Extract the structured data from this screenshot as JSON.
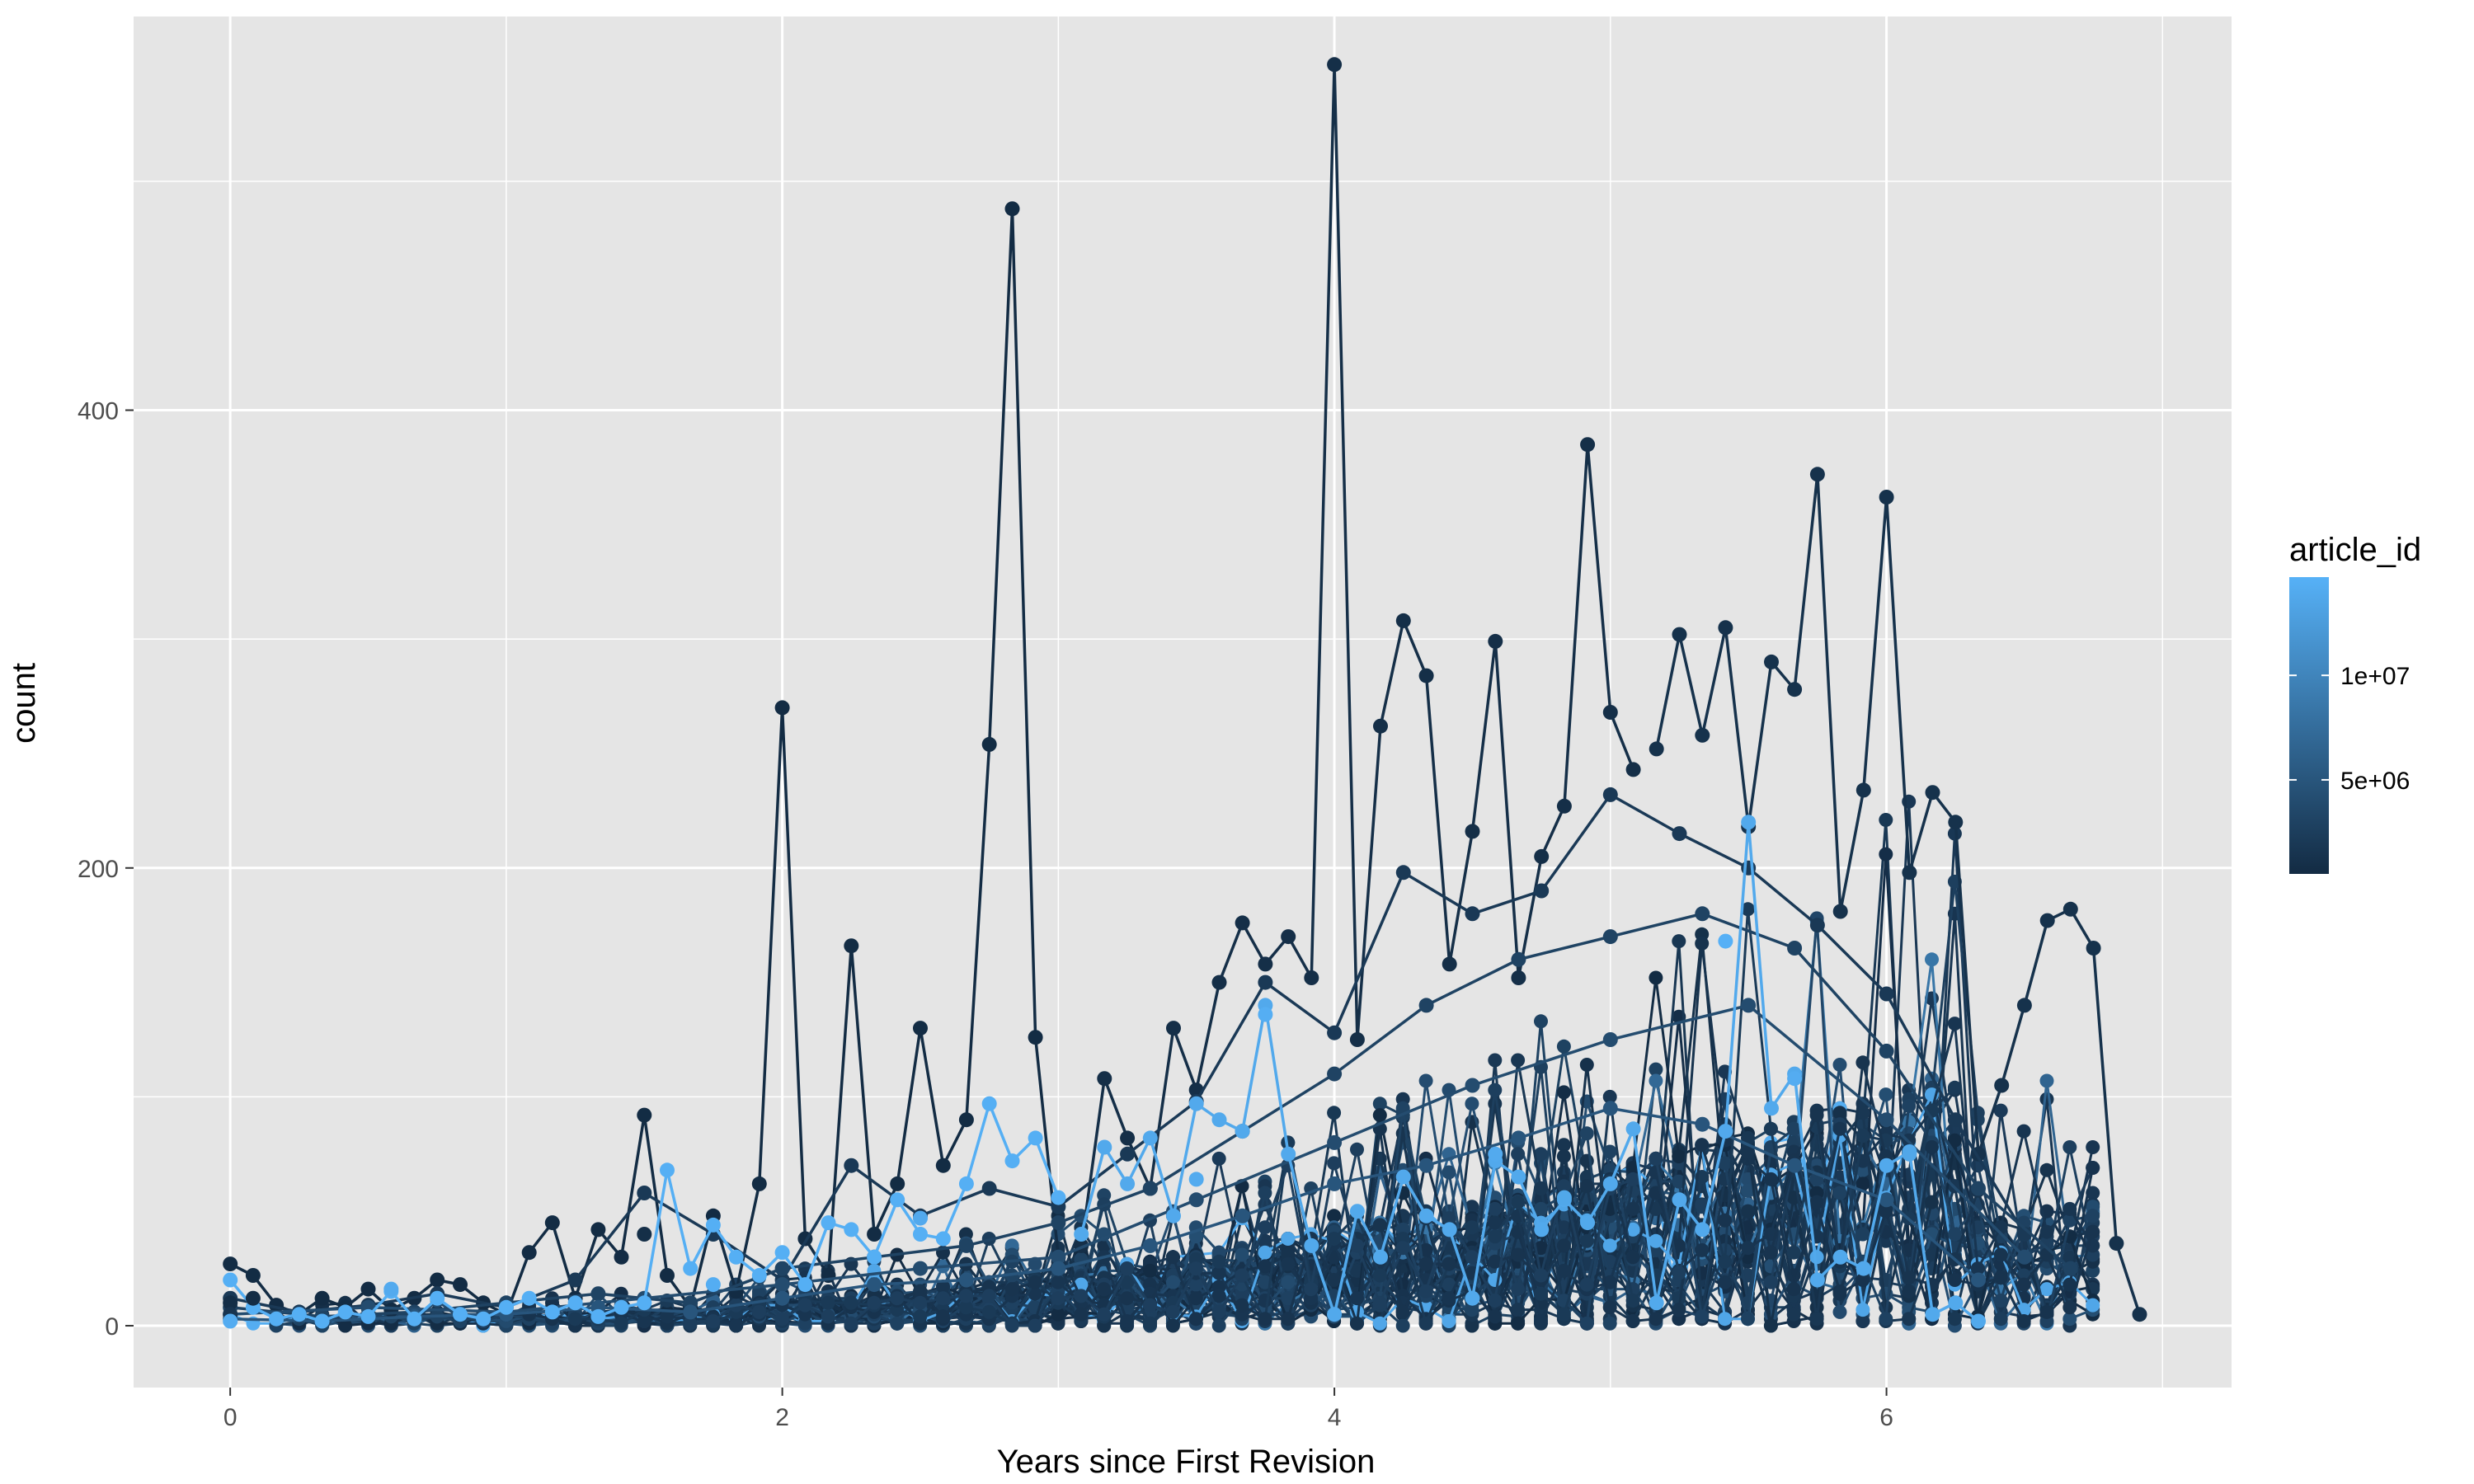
{
  "chart_data": {
    "type": "line",
    "title": "",
    "xlabel": "Years since First Revision",
    "ylabel": "count",
    "xlim": [
      -0.35,
      7.25
    ],
    "ylim": [
      -27,
      572
    ],
    "x_ticks": [
      0,
      2,
      4,
      6
    ],
    "x_tick_labels": [
      "0",
      "2",
      "4",
      "6"
    ],
    "y_ticks": [
      0,
      200,
      400
    ],
    "y_tick_labels": [
      "0",
      "200",
      "400"
    ],
    "x_minor_ticks": [
      1,
      3,
      5,
      7
    ],
    "y_minor_ticks": [
      100,
      300,
      500
    ],
    "grid": true,
    "markers": true,
    "panel_background": "#e5e5e5",
    "grid_color": "#ffffff",
    "color_scale": {
      "variable": "article_id",
      "title": "article_id",
      "low_color": "#132b43",
      "high_color": "#56b1f7",
      "range": [
        500000,
        14700000
      ],
      "breaks": [
        5000000,
        10000000
      ],
      "break_labels": [
        "5e+06",
        "1e+07"
      ],
      "legend_position": "right"
    },
    "series": [
      {
        "article_id": 600000,
        "x": [
          0.0,
          0.083,
          0.167,
          0.25,
          0.333,
          0.417,
          0.5,
          0.583,
          0.667,
          0.75,
          0.833,
          0.917,
          1.0,
          1.083,
          1.167,
          1.25,
          1.333,
          1.417,
          1.5,
          1.583,
          1.667,
          1.75,
          1.833,
          1.917,
          2.0,
          2.083,
          2.167,
          2.25,
          2.333,
          2.417,
          2.5,
          2.583,
          2.667,
          2.75,
          2.833,
          2.917,
          3.0
        ],
        "y": [
          27,
          22,
          9,
          5,
          12,
          8,
          16,
          7,
          12,
          20,
          18,
          10,
          5,
          32,
          45,
          12,
          42,
          30,
          92,
          22,
          8,
          48,
          15,
          62,
          270,
          38,
          22,
          166,
          40,
          62,
          130,
          70,
          90,
          254,
          488,
          126,
          30
        ]
      },
      {
        "article_id": 900000,
        "x": [
          3.083,
          3.167,
          3.25,
          3.333,
          3.417,
          3.5,
          3.583,
          3.667,
          3.75,
          3.833,
          3.917,
          4.0,
          4.083,
          4.167,
          4.25,
          4.333,
          4.417,
          4.5,
          4.583,
          4.667,
          4.75,
          4.833,
          4.917,
          5.0,
          5.083
        ],
        "y": [
          35,
          108,
          82,
          60,
          130,
          103,
          150,
          176,
          158,
          170,
          152,
          551,
          125,
          262,
          308,
          284,
          158,
          216,
          299,
          152,
          205,
          227,
          385,
          268,
          243
        ]
      },
      {
        "article_id": 1200000,
        "x": [
          5.167,
          5.25,
          5.333,
          5.417,
          5.5,
          5.583,
          5.667,
          5.75,
          5.833,
          5.917,
          6.0,
          6.083,
          6.167,
          6.25,
          6.333,
          6.417,
          6.5,
          6.583,
          6.667,
          6.75,
          6.833,
          6.917
        ],
        "y": [
          252,
          302,
          258,
          305,
          218,
          290,
          278,
          372,
          181,
          234,
          362,
          198,
          233,
          220,
          75,
          105,
          140,
          177,
          182,
          165,
          36,
          5
        ]
      },
      {
        "article_id": 2000000,
        "x": [
          0.0,
          0.25,
          0.5,
          0.75,
          1.0,
          1.25,
          1.5,
          1.75,
          2.0,
          2.25,
          2.5,
          2.75,
          3.0,
          3.25,
          3.5,
          3.75,
          4.0,
          4.25,
          4.5,
          4.75,
          5.0,
          5.25,
          5.5,
          5.75,
          6.0,
          6.25,
          6.5
        ],
        "y": [
          12,
          6,
          9,
          14,
          8,
          20,
          58,
          40,
          20,
          70,
          48,
          60,
          52,
          75,
          98,
          150,
          128,
          198,
          180,
          190,
          232,
          215,
          200,
          175,
          145,
          90,
          40
        ]
      },
      {
        "article_id": 3000000,
        "x": [
          0.0,
          0.333,
          0.667,
          1.0,
          1.333,
          1.667,
          2.0,
          2.333,
          2.667,
          3.0,
          3.333,
          3.667,
          4.0,
          4.333,
          4.667,
          5.0,
          5.333,
          5.667,
          6.0,
          6.333,
          6.667
        ],
        "y": [
          8,
          4,
          6,
          10,
          14,
          10,
          25,
          30,
          35,
          45,
          60,
          85,
          110,
          140,
          160,
          170,
          180,
          165,
          120,
          60,
          25
        ]
      },
      {
        "article_id": 4000000,
        "x": [
          0.0,
          0.5,
          1.0,
          1.5,
          2.0,
          2.5,
          3.0,
          3.5,
          4.0,
          4.5,
          5.0,
          5.5,
          6.0,
          6.5
        ],
        "y": [
          5,
          8,
          6,
          12,
          18,
          25,
          30,
          55,
          80,
          105,
          125,
          140,
          90,
          30
        ]
      },
      {
        "article_id": 5000000,
        "x": [
          0.0,
          0.333,
          0.667,
          1.0,
          1.333,
          1.667,
          2.0,
          2.333,
          2.667,
          3.0,
          3.333,
          3.667,
          4.0,
          4.333,
          4.667,
          5.0,
          5.333,
          5.667,
          6.0,
          6.333
        ],
        "y": [
          3,
          2,
          4,
          5,
          8,
          6,
          12,
          18,
          20,
          25,
          35,
          48,
          62,
          70,
          82,
          95,
          88,
          70,
          55,
          20
        ]
      },
      {
        "article_id": 14500000,
        "x": [
          0.0,
          0.083,
          0.167,
          0.25,
          0.333,
          0.417,
          0.5,
          0.583,
          0.667,
          0.75,
          0.833,
          0.917,
          1.0,
          1.083,
          1.167,
          1.25,
          1.333,
          1.417,
          1.5,
          1.583,
          1.667,
          1.75,
          1.833,
          1.917,
          2.0,
          2.083,
          2.167,
          2.25,
          2.333,
          2.417,
          2.5,
          2.583,
          2.667,
          2.75,
          2.833,
          2.917,
          3.0
        ],
        "y": [
          20,
          8,
          3,
          5,
          2,
          6,
          4,
          15,
          3,
          12,
          5,
          3,
          8,
          12,
          6,
          10,
          4,
          8,
          10,
          68,
          25,
          44,
          30,
          22,
          32,
          18,
          45,
          42,
          30,
          55,
          40,
          38,
          62,
          97,
          72,
          82,
          56
        ]
      },
      {
        "article_id": 13800000,
        "x": [
          3.083,
          3.167,
          3.25,
          3.333,
          3.417,
          3.5,
          3.583,
          3.667,
          3.75,
          3.833,
          3.917,
          4.0,
          4.083,
          4.167,
          4.25,
          4.333,
          4.417,
          4.5,
          4.583,
          4.667,
          4.75,
          4.833,
          4.917,
          5.0,
          5.083,
          5.167,
          5.25,
          5.333,
          5.417,
          5.5,
          5.583,
          5.667,
          5.75,
          5.833,
          5.917,
          6.0,
          6.083,
          6.167,
          6.25,
          6.333
        ],
        "y": [
          40,
          78,
          62,
          82,
          48,
          97,
          90,
          85,
          140,
          75,
          35,
          5,
          50,
          30,
          65,
          48,
          42,
          12,
          72,
          65,
          42,
          55,
          45,
          62,
          86,
          10,
          55,
          42,
          85,
          220,
          95,
          110,
          20,
          30,
          25,
          70,
          76,
          5,
          10,
          2
        ]
      }
    ],
    "scatter_points": {
      "note_style": "per-series colored points",
      "points": [
        {
          "x": 0.0,
          "y": 10,
          "article_id": 800000
        },
        {
          "x": 0.0,
          "y": 5,
          "article_id": 1500000
        },
        {
          "x": 0.0,
          "y": 2,
          "article_id": 14200000
        },
        {
          "x": 0.083,
          "y": 12,
          "article_id": 700000
        },
        {
          "x": 0.583,
          "y": 16,
          "article_id": 14000000
        },
        {
          "x": 1.5,
          "y": 40,
          "article_id": 900000
        },
        {
          "x": 1.75,
          "y": 18,
          "article_id": 14300000
        },
        {
          "x": 2.5,
          "y": 47,
          "article_id": 13900000
        },
        {
          "x": 3.5,
          "y": 64,
          "article_id": 14100000
        },
        {
          "x": 3.75,
          "y": 136,
          "article_id": 14400000
        },
        {
          "x": 4.583,
          "y": 75,
          "article_id": 14000000
        },
        {
          "x": 4.833,
          "y": 56,
          "article_id": 13700000
        },
        {
          "x": 5.417,
          "y": 168,
          "article_id": 14600000
        },
        {
          "x": 5.667,
          "y": 108,
          "article_id": 14200000
        },
        {
          "x": 6.083,
          "y": 75,
          "article_id": 13600000
        }
      ]
    },
    "dense_band": {
      "description_free_values": true,
      "x_start": 0.0,
      "x_end": 6.75,
      "step": 0.0833,
      "max_count": 200,
      "n_series": 60,
      "id_range": [
        500000,
        14700000
      ]
    }
  }
}
